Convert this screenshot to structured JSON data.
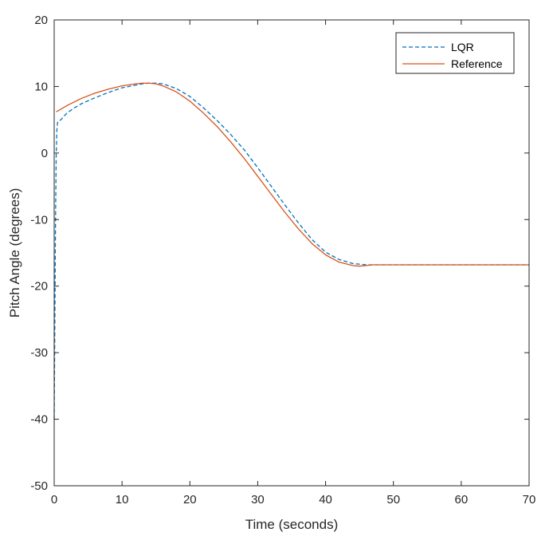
{
  "chart_data": {
    "type": "line",
    "title": "",
    "xlabel": "Time (seconds)",
    "ylabel": "Pitch Angle (degrees)",
    "xlim": [
      0,
      70
    ],
    "ylim": [
      -50,
      20
    ],
    "xticks": [
      "0",
      "10",
      "20",
      "30",
      "40",
      "50",
      "60",
      "70"
    ],
    "yticks": [
      "-50",
      "-40",
      "-30",
      "-20",
      "-10",
      "0",
      "10",
      "20"
    ],
    "grid": false,
    "legend_position": "top-right",
    "series": [
      {
        "name": "LQR",
        "color": "#0072BD",
        "style": "dashed",
        "x": [
          0,
          0.1,
          0.2,
          0.3,
          0.4,
          0.5,
          0.6,
          0.8,
          1.0,
          1.5,
          2,
          3,
          4,
          6,
          8,
          10,
          12,
          13,
          14,
          15,
          16,
          18,
          20,
          22,
          24,
          26,
          28,
          30,
          32,
          34,
          36,
          38,
          40,
          42,
          44,
          46,
          47,
          48,
          50,
          55,
          60,
          65,
          70
        ],
        "y": [
          -40,
          -25,
          -10,
          0,
          3.5,
          4.6,
          4.8,
          4.9,
          5.0,
          5.6,
          6.1,
          6.8,
          7.4,
          8.3,
          9.1,
          9.8,
          10.2,
          10.4,
          10.5,
          10.5,
          10.4,
          9.7,
          8.5,
          6.8,
          4.9,
          2.8,
          0.5,
          -2.2,
          -5.0,
          -7.8,
          -10.5,
          -13.0,
          -14.9,
          -16.0,
          -16.6,
          -16.8,
          -16.8,
          -16.8,
          -16.8,
          -16.8,
          -16.8,
          -16.8,
          -16.8
        ]
      },
      {
        "name": "Reference",
        "color": "#D95319",
        "style": "solid",
        "x": [
          0.3,
          1,
          2,
          4,
          6,
          8,
          10,
          12,
          13,
          14,
          15,
          16,
          18,
          20,
          22,
          24,
          26,
          28,
          30,
          32,
          34,
          36,
          38,
          40,
          42,
          44,
          45,
          46,
          47,
          48,
          50,
          55,
          60,
          65,
          70
        ],
        "y": [
          6.2,
          6.6,
          7.2,
          8.2,
          9.0,
          9.6,
          10.1,
          10.4,
          10.5,
          10.5,
          10.4,
          10.1,
          9.2,
          7.8,
          6.0,
          4.0,
          1.7,
          -0.8,
          -3.5,
          -6.2,
          -8.9,
          -11.4,
          -13.6,
          -15.3,
          -16.4,
          -16.9,
          -17.0,
          -16.9,
          -16.8,
          -16.8,
          -16.8,
          -16.8,
          -16.8,
          -16.8,
          -16.8
        ]
      }
    ]
  }
}
